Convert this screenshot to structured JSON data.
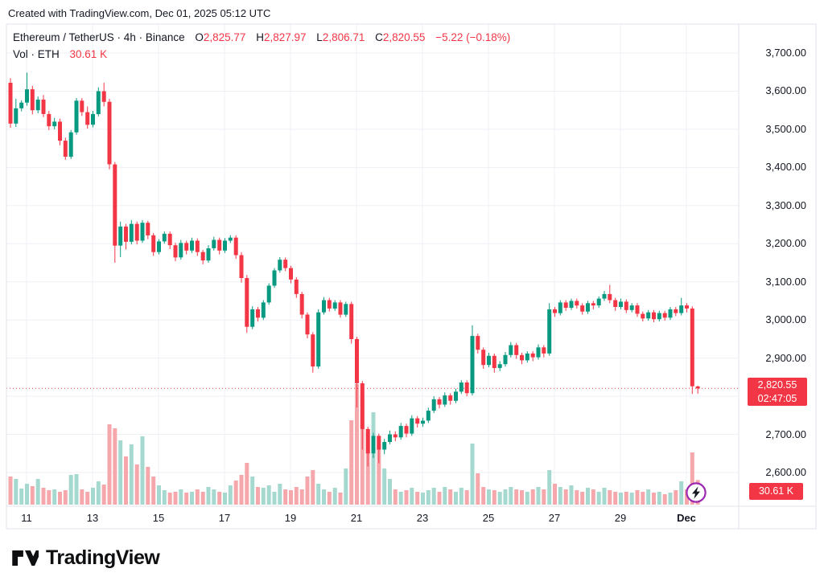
{
  "attribution": "Created with TradingView.com, Dec 01, 2025 05:12 UTC",
  "legend": {
    "title": "Ethereum / TetherUS · 4h · Binance",
    "o_label": "O",
    "o": "2,825.77",
    "h_label": "H",
    "h": "2,827.97",
    "l_label": "L",
    "l": "2,806.71",
    "c_label": "C",
    "c": "2,820.55",
    "change": "−5.22 (−0.18%)",
    "vol_label": "Vol · ETH",
    "vol_value": "30.61 K"
  },
  "price_label": {
    "price": "2,820.55",
    "countdown": "02:47:05"
  },
  "volume_label": "30.61 K",
  "footer": {
    "logo_text": "TradingView"
  },
  "colors": {
    "up": "#089981",
    "down": "#f23645",
    "vol_up": "#a5d8cf",
    "vol_down": "#f5a7ac",
    "grid": "#eef0f6",
    "border": "#e0e3eb",
    "badge": "#f23645",
    "accent_purple": "#9c27b0",
    "text": "#131722"
  },
  "chart_data": {
    "type": "candlestick",
    "title": "Ethereum / TetherUS · 4h · Binance",
    "symbol": "Ethereum / TetherUS",
    "interval": "4h",
    "exchange": "Binance",
    "current_ohlc": {
      "open": 2825.77,
      "high": 2827.97,
      "low": 2806.71,
      "close": 2820.55,
      "change": -5.22,
      "change_pct": -0.18
    },
    "current_price": 2820.55,
    "bar_countdown": "02:47:05",
    "current_volume_k": 30.61,
    "price_axis": {
      "min": 2600,
      "max": 3700,
      "ticks": [
        {
          "label": "3,700.00",
          "value": 3700
        },
        {
          "label": "3,600.00",
          "value": 3600
        },
        {
          "label": "3,500.00",
          "value": 3500
        },
        {
          "label": "3,400.00",
          "value": 3400
        },
        {
          "label": "3,300.00",
          "value": 3300
        },
        {
          "label": "3,200.00",
          "value": 3200
        },
        {
          "label": "3,100.00",
          "value": 3100
        },
        {
          "label": "3,000.00",
          "value": 3000
        },
        {
          "label": "2,900.00",
          "value": 2900
        },
        {
          "label": "2,700.00",
          "value": 2700
        },
        {
          "label": "2,600.00",
          "value": 2600
        }
      ],
      "grid_values": [
        2600,
        2700,
        2800,
        2900,
        3000,
        3100,
        3200,
        3300,
        3400,
        3500,
        3600,
        3700
      ]
    },
    "time_ticks": [
      {
        "label": "11",
        "bar": 2.93
      },
      {
        "label": "13",
        "bar": 14.93
      },
      {
        "label": "15",
        "bar": 26.93
      },
      {
        "label": "17",
        "bar": 38.93
      },
      {
        "label": "19",
        "bar": 50.93
      },
      {
        "label": "21",
        "bar": 62.93
      },
      {
        "label": "23",
        "bar": 74.93
      },
      {
        "label": "25",
        "bar": 86.93
      },
      {
        "label": "27",
        "bar": 98.93
      },
      {
        "label": "29",
        "bar": 110.93
      },
      {
        "label": "Dec",
        "bar": 122.93,
        "bold": true
      }
    ],
    "candles_format": [
      "open",
      "high",
      "low",
      "close",
      "volume_k"
    ],
    "candles": [
      [
        3622,
        3634,
        3504,
        3515,
        35
      ],
      [
        3515,
        3580,
        3506,
        3555,
        32
      ],
      [
        3555,
        3576,
        3547,
        3570,
        20
      ],
      [
        3570,
        3649,
        3562,
        3605,
        26
      ],
      [
        3605,
        3614,
        3539,
        3550,
        23
      ],
      [
        3550,
        3586,
        3542,
        3578,
        32
      ],
      [
        3578,
        3590,
        3532,
        3540,
        21
      ],
      [
        3540,
        3548,
        3498,
        3508,
        18
      ],
      [
        3508,
        3530,
        3500,
        3520,
        19
      ],
      [
        3520,
        3528,
        3458,
        3470,
        16
      ],
      [
        3470,
        3478,
        3420,
        3428,
        18
      ],
      [
        3428,
        3498,
        3422,
        3492,
        37
      ],
      [
        3492,
        3582,
        3486,
        3575,
        38
      ],
      [
        3575,
        3582,
        3535,
        3545,
        19
      ],
      [
        3545,
        3560,
        3502,
        3512,
        16
      ],
      [
        3512,
        3548,
        3505,
        3540,
        21
      ],
      [
        3540,
        3610,
        3534,
        3600,
        29
      ],
      [
        3600,
        3622,
        3560,
        3572,
        25
      ],
      [
        3572,
        3580,
        3395,
        3408,
        100
      ],
      [
        3408,
        3414,
        3150,
        3195,
        95
      ],
      [
        3195,
        3258,
        3165,
        3245,
        80
      ],
      [
        3245,
        3252,
        3185,
        3205,
        60
      ],
      [
        3205,
        3262,
        3198,
        3252,
        75
      ],
      [
        3252,
        3258,
        3198,
        3208,
        50
      ],
      [
        3208,
        3262,
        3202,
        3255,
        85
      ],
      [
        3255,
        3260,
        3212,
        3222,
        47
      ],
      [
        3222,
        3228,
        3168,
        3178,
        35
      ],
      [
        3178,
        3212,
        3172,
        3206,
        24
      ],
      [
        3206,
        3232,
        3200,
        3226,
        18
      ],
      [
        3226,
        3232,
        3186,
        3196,
        15
      ],
      [
        3196,
        3202,
        3154,
        3164,
        16
      ],
      [
        3164,
        3210,
        3158,
        3202,
        19
      ],
      [
        3202,
        3208,
        3172,
        3182,
        15
      ],
      [
        3182,
        3216,
        3176,
        3208,
        16
      ],
      [
        3208,
        3214,
        3168,
        3178,
        19
      ],
      [
        3178,
        3184,
        3146,
        3156,
        16
      ],
      [
        3156,
        3196,
        3150,
        3188,
        22
      ],
      [
        3188,
        3218,
        3182,
        3210,
        19
      ],
      [
        3210,
        3216,
        3172,
        3182,
        16
      ],
      [
        3182,
        3215,
        3176,
        3208,
        15
      ],
      [
        3208,
        3222,
        3202,
        3216,
        24
      ],
      [
        3216,
        3222,
        3160,
        3170,
        30
      ],
      [
        3170,
        3178,
        3098,
        3110,
        37
      ],
      [
        3110,
        3118,
        2966,
        2982,
        52
      ],
      [
        2982,
        3036,
        2976,
        3028,
        35
      ],
      [
        3028,
        3034,
        2996,
        3006,
        22
      ],
      [
        3006,
        3052,
        3000,
        3046,
        21
      ],
      [
        3046,
        3096,
        3040,
        3090,
        24
      ],
      [
        3090,
        3136,
        3084,
        3130,
        16
      ],
      [
        3130,
        3165,
        3124,
        3158,
        26
      ],
      [
        3158,
        3164,
        3128,
        3136,
        19
      ],
      [
        3136,
        3142,
        3096,
        3106,
        18
      ],
      [
        3106,
        3112,
        3058,
        3068,
        22
      ],
      [
        3068,
        3074,
        3004,
        3014,
        19
      ],
      [
        3014,
        3020,
        2952,
        2962,
        35
      ],
      [
        2962,
        2968,
        2862,
        2878,
        43
      ],
      [
        2878,
        3028,
        2872,
        3020,
        26
      ],
      [
        3020,
        3060,
        3014,
        3052,
        19
      ],
      [
        3052,
        3058,
        3022,
        3030,
        16
      ],
      [
        3030,
        3052,
        3024,
        3046,
        21
      ],
      [
        3046,
        3052,
        3006,
        3014,
        15
      ],
      [
        3014,
        3048,
        3008,
        3042,
        45
      ],
      [
        3042,
        3048,
        2938,
        2950,
        105
      ],
      [
        2950,
        2956,
        2770,
        2834,
        150
      ],
      [
        2834,
        2840,
        2660,
        2714,
        135
      ],
      [
        2714,
        2720,
        2616,
        2650,
        90
      ],
      [
        2650,
        2704,
        2638,
        2696,
        115
      ],
      [
        2696,
        2702,
        2624,
        2660,
        75
      ],
      [
        2660,
        2688,
        2648,
        2680,
        45
      ],
      [
        2680,
        2710,
        2674,
        2700,
        32
      ],
      [
        2700,
        2708,
        2682,
        2692,
        19
      ],
      [
        2692,
        2730,
        2686,
        2722,
        16
      ],
      [
        2722,
        2728,
        2692,
        2702,
        18
      ],
      [
        2702,
        2750,
        2696,
        2742,
        21
      ],
      [
        2742,
        2748,
        2718,
        2728,
        16
      ],
      [
        2728,
        2744,
        2720,
        2736,
        15
      ],
      [
        2736,
        2770,
        2730,
        2762,
        18
      ],
      [
        2762,
        2800,
        2756,
        2792,
        21
      ],
      [
        2792,
        2798,
        2768,
        2778,
        16
      ],
      [
        2778,
        2810,
        2772,
        2802,
        22
      ],
      [
        2802,
        2808,
        2778,
        2788,
        19
      ],
      [
        2788,
        2820,
        2782,
        2812,
        16
      ],
      [
        2812,
        2842,
        2806,
        2836,
        21
      ],
      [
        2836,
        2842,
        2800,
        2808,
        18
      ],
      [
        2808,
        2986,
        2802,
        2958,
        76
      ],
      [
        2958,
        2964,
        2912,
        2922,
        39
      ],
      [
        2922,
        2928,
        2872,
        2882,
        22
      ],
      [
        2882,
        2914,
        2876,
        2906,
        19
      ],
      [
        2906,
        2912,
        2862,
        2874,
        18
      ],
      [
        2874,
        2892,
        2866,
        2884,
        16
      ],
      [
        2884,
        2916,
        2878,
        2908,
        19
      ],
      [
        2908,
        2942,
        2902,
        2934,
        22
      ],
      [
        2934,
        2940,
        2898,
        2908,
        19
      ],
      [
        2908,
        2914,
        2884,
        2894,
        18
      ],
      [
        2894,
        2918,
        2888,
        2912,
        16
      ],
      [
        2912,
        2918,
        2892,
        2902,
        19
      ],
      [
        2902,
        2936,
        2896,
        2928,
        22
      ],
      [
        2928,
        2934,
        2902,
        2912,
        19
      ],
      [
        2912,
        3044,
        2906,
        3028,
        43
      ],
      [
        3028,
        3034,
        3008,
        3018,
        26
      ],
      [
        3018,
        3052,
        3012,
        3046,
        22
      ],
      [
        3046,
        3052,
        3024,
        3032,
        19
      ],
      [
        3032,
        3056,
        3026,
        3050,
        24
      ],
      [
        3050,
        3056,
        3030,
        3038,
        18
      ],
      [
        3038,
        3044,
        3014,
        3022,
        16
      ],
      [
        3022,
        3050,
        3016,
        3044,
        21
      ],
      [
        3044,
        3050,
        3028,
        3038,
        19
      ],
      [
        3038,
        3062,
        3032,
        3056,
        16
      ],
      [
        3056,
        3076,
        3050,
        3068,
        21
      ],
      [
        3068,
        3092,
        3044,
        3052,
        18
      ],
      [
        3052,
        3058,
        3024,
        3034,
        16
      ],
      [
        3034,
        3056,
        3028,
        3048,
        15
      ],
      [
        3048,
        3054,
        3018,
        3026,
        16
      ],
      [
        3026,
        3044,
        3020,
        3038,
        15
      ],
      [
        3038,
        3044,
        3008,
        3016,
        18
      ],
      [
        3016,
        3022,
        2996,
        3004,
        16
      ],
      [
        3004,
        3026,
        2998,
        3020,
        19
      ],
      [
        3020,
        3026,
        2994,
        3002,
        15
      ],
      [
        3002,
        3024,
        2996,
        3018,
        16
      ],
      [
        3018,
        3024,
        2998,
        3006,
        13
      ],
      [
        3006,
        3034,
        3000,
        3028,
        15
      ],
      [
        3028,
        3034,
        3010,
        3018,
        18
      ],
      [
        3018,
        3058,
        3012,
        3038,
        29
      ],
      [
        3038,
        3044,
        3020,
        3030,
        19
      ],
      [
        3030,
        3036,
        2806,
        2826,
        65
      ],
      [
        2825.77,
        2827.97,
        2806.71,
        2820.55,
        30.61
      ]
    ]
  }
}
